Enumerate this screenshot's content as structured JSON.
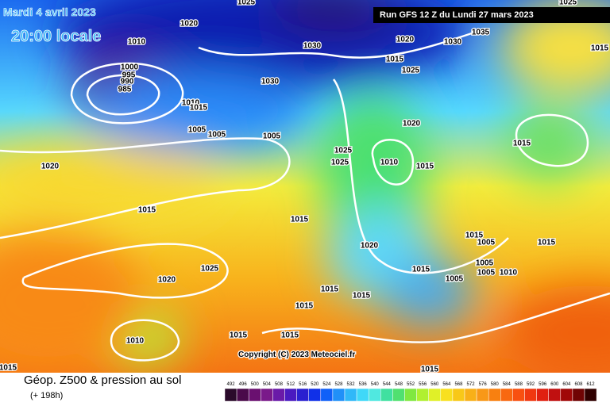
{
  "header": {
    "date": "Mardi 4 avril 2023",
    "time": "20:00 locale",
    "run": "Run GFS 12 Z du Lundi 27 mars 2023"
  },
  "footer": {
    "title": "Géop. Z500 & pression au sol",
    "subtitle": "(+ 198h)",
    "copyright": "Copyright (C) 2023 Meteociel.fr"
  },
  "isobar_labels": [
    "1010",
    "1020",
    "1000",
    "995",
    "990",
    "985",
    "1010",
    "1015",
    "1005",
    "1005",
    "1005",
    "1020",
    "1015",
    "1025",
    "1020",
    "1010",
    "1015",
    "1015",
    "1015",
    "1015",
    "1015",
    "1015",
    "1015",
    "1030",
    "1030",
    "1025",
    "1030",
    "1035",
    "1020",
    "1015",
    "1025",
    "1020",
    "1025",
    "1025",
    "1010",
    "1015",
    "1020",
    "1015",
    "1005",
    "1005",
    "1005",
    "1015",
    "1010",
    "1005",
    "1015",
    "1015",
    "1015",
    "1025",
    "1015"
  ],
  "scale": {
    "labels": [
      492,
      496,
      500,
      504,
      508,
      512,
      516,
      520,
      524,
      528,
      532,
      536,
      540,
      544,
      548,
      552,
      556,
      560,
      564,
      568,
      572,
      576,
      580,
      584,
      588,
      592,
      596,
      600,
      604,
      608,
      612
    ]
  }
}
